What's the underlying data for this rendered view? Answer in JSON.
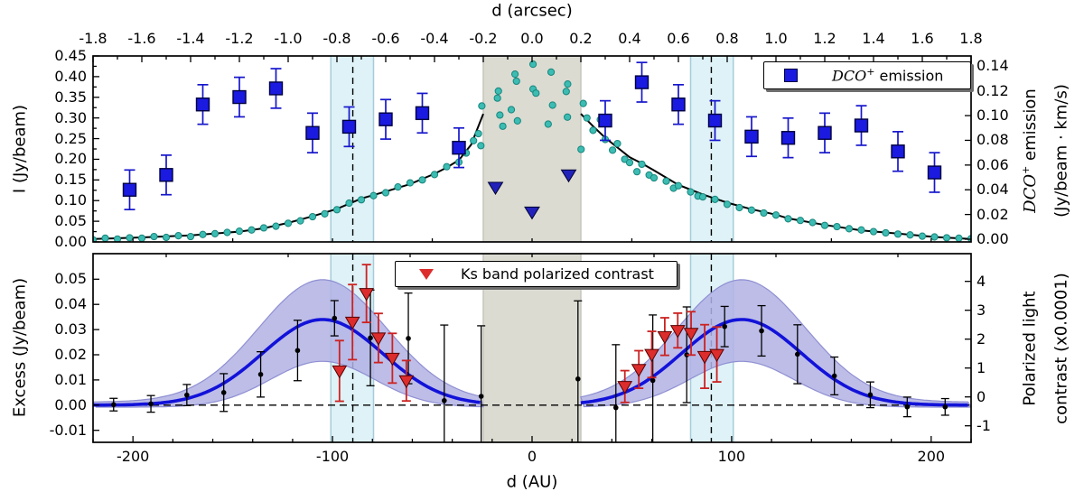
{
  "colors": {
    "square_fill": "#1a1ae0",
    "square_edge": "#000040",
    "blue_err": "#1616cc",
    "triangle_top_fill": "#2222bb",
    "dot_fill": "#3cbcb2",
    "dot_edge": "#17867d",
    "top_curve": "#000000",
    "gray_band": "#dbdbd2",
    "gray_band_edge": "#c6c6bc",
    "cyan_band": "#def2f7",
    "cyan_band_edge": "#a6ccd9",
    "blue_curve": "#1212d9",
    "blue_band": "#b2b2e4",
    "blue_band_edge": "#8f8fd2",
    "red_fill": "#dd2c2c",
    "red_edge": "#550000",
    "red_err": "#cc2222",
    "black": "#000000"
  },
  "annotations": {
    "gray_band_arcsec": [
      -0.2,
      0.2
    ],
    "cyan_bands_arcsec": [
      [
        -0.825,
        -0.65
      ],
      [
        0.65,
        0.825
      ]
    ],
    "dashed_lines_arcsec": [
      -0.735,
      0.735
    ],
    "zero_line_bottom": 0
  },
  "chart_data": [
    {
      "type": "scatter",
      "panel": "top",
      "x_axis": {
        "title": "d (arcsec)",
        "range": [
          -1.8,
          1.8
        ],
        "tick_values": [
          -1.8,
          -1.6,
          -1.4,
          -1.2,
          -1.0,
          -0.8,
          -0.6,
          -0.4,
          -0.2,
          0.0,
          0.2,
          0.4,
          0.6,
          0.8,
          1.0,
          1.2,
          1.4,
          1.6,
          1.8
        ],
        "tick_labels": [
          "-1.8",
          "-1.6",
          "-1.4",
          "-1.2",
          "-1.0",
          "-0.8",
          "-0.6",
          "-0.4",
          "-0.2",
          "0.0",
          "0.2",
          "0.4",
          "0.6",
          "0.8",
          "1.0",
          "1.2",
          "1.4",
          "1.6",
          "1.8"
        ]
      },
      "y_left": {
        "title": "I (Jy/beam)",
        "range": [
          0,
          0.45
        ],
        "tick_values": [
          0.45,
          0.4,
          0.35,
          0.3,
          0.25,
          0.2,
          0.15,
          0.1,
          0.05,
          0.0
        ],
        "tick_labels": [
          "0.45",
          "0.40",
          "0.35",
          "0.30",
          "0.25",
          "0.20",
          "0.15",
          "0.10",
          "0.05",
          "0.00"
        ]
      },
      "y_right": {
        "title_line1_italic": "DCO",
        "title_line1_sup": "+",
        "title_line1_rest": " emission",
        "title_line2": "(Jy/beam · km/s)",
        "range": [
          0,
          0.14
        ],
        "tick_values": [
          0.14,
          0.12,
          0.1,
          0.08,
          0.06,
          0.04,
          0.02,
          0.0
        ],
        "tick_labels": [
          "0.14",
          "0.12",
          "0.10",
          "0.08",
          "0.06",
          "0.04",
          "0.02",
          "0.00"
        ]
      },
      "legend": {
        "marker": "blue-square",
        "label_italic": "DCO",
        "label_sup": "+",
        "label_rest": " emission"
      },
      "series": {
        "dco_squares": {
          "axis": "right",
          "err": 0.016,
          "points": [
            [
              -1.65,
              0.04
            ],
            [
              -1.5,
              0.052
            ],
            [
              -1.35,
              0.109
            ],
            [
              -1.2,
              0.115
            ],
            [
              -1.05,
              0.122
            ],
            [
              -0.9,
              0.086
            ],
            [
              -0.75,
              0.091
            ],
            [
              -0.6,
              0.097
            ],
            [
              -0.45,
              0.102
            ],
            [
              -0.3,
              0.074
            ],
            [
              0.3,
              0.096
            ],
            [
              0.45,
              0.127
            ],
            [
              0.6,
              0.109
            ],
            [
              0.75,
              0.096
            ],
            [
              0.9,
              0.083
            ],
            [
              1.05,
              0.082
            ],
            [
              1.2,
              0.086
            ],
            [
              1.35,
              0.092
            ],
            [
              1.5,
              0.071
            ],
            [
              1.65,
              0.054
            ]
          ]
        },
        "dco_triangles": {
          "axis": "right",
          "points": [
            [
              -0.15,
              0.042
            ],
            [
              0.0,
              0.022
            ],
            [
              0.15,
              0.052
            ]
          ]
        },
        "profile_dots": {
          "axis": "left",
          "points": [
            [
              -1.8,
              0.005
            ],
            [
              -1.75,
              0.009
            ],
            [
              -1.7,
              0.007
            ],
            [
              -1.65,
              0.01
            ],
            [
              -1.6,
              0.009
            ],
            [
              -1.55,
              0.013
            ],
            [
              -1.5,
              0.011
            ],
            [
              -1.45,
              0.015
            ],
            [
              -1.4,
              0.013
            ],
            [
              -1.35,
              0.018
            ],
            [
              -1.3,
              0.02
            ],
            [
              -1.25,
              0.023
            ],
            [
              -1.2,
              0.026
            ],
            [
              -1.15,
              0.029
            ],
            [
              -1.1,
              0.034
            ],
            [
              -1.05,
              0.038
            ],
            [
              -1.0,
              0.045
            ],
            [
              -0.95,
              0.051
            ],
            [
              -0.9,
              0.061
            ],
            [
              -0.85,
              0.068
            ],
            [
              -0.8,
              0.078
            ],
            [
              -0.75,
              0.094
            ],
            [
              -0.7,
              0.102
            ],
            [
              -0.65,
              0.112
            ],
            [
              -0.6,
              0.119
            ],
            [
              -0.55,
              0.133
            ],
            [
              -0.5,
              0.143
            ],
            [
              -0.45,
              0.15
            ],
            [
              -0.4,
              0.163
            ],
            [
              -0.35,
              0.182
            ],
            [
              -0.3,
              0.193
            ],
            [
              -0.27,
              0.215
            ],
            [
              -0.24,
              0.245
            ],
            [
              -0.22,
              0.262
            ],
            [
              -0.21,
              0.233
            ],
            [
              -0.206,
              0.329
            ],
            [
              -0.142,
              0.348
            ],
            [
              -0.138,
              0.365
            ],
            [
              -0.132,
              0.307
            ],
            [
              -0.12,
              0.28
            ],
            [
              -0.085,
              0.32
            ],
            [
              -0.07,
              0.406
            ],
            [
              -0.064,
              0.389
            ],
            [
              -0.06,
              0.293
            ],
            [
              0.004,
              0.43
            ],
            [
              0.004,
              0.37
            ],
            [
              0.016,
              0.36
            ],
            [
              0.066,
              0.285
            ],
            [
              0.078,
              0.411
            ],
            [
              0.084,
              0.331
            ],
            [
              0.14,
              0.364
            ],
            [
              0.145,
              0.302
            ],
            [
              0.146,
              0.382
            ],
            [
              0.201,
              0.224
            ],
            [
              0.21,
              0.335
            ],
            [
              0.225,
              0.3
            ],
            [
              0.25,
              0.27
            ],
            [
              0.28,
              0.296
            ],
            [
              0.3,
              0.248
            ],
            [
              0.33,
              0.222
            ],
            [
              0.35,
              0.238
            ],
            [
              0.38,
              0.2
            ],
            [
              0.4,
              0.192
            ],
            [
              0.43,
              0.17
            ],
            [
              0.45,
              0.188
            ],
            [
              0.48,
              0.162
            ],
            [
              0.5,
              0.155
            ],
            [
              0.55,
              0.147
            ],
            [
              0.58,
              0.13
            ],
            [
              0.6,
              0.136
            ],
            [
              0.65,
              0.121
            ],
            [
              0.68,
              0.111
            ],
            [
              0.7,
              0.109
            ],
            [
              0.75,
              0.103
            ],
            [
              0.8,
              0.091
            ],
            [
              0.85,
              0.083
            ],
            [
              0.9,
              0.077
            ],
            [
              0.95,
              0.07
            ],
            [
              1.0,
              0.065
            ],
            [
              1.05,
              0.056
            ],
            [
              1.1,
              0.052
            ],
            [
              1.15,
              0.047
            ],
            [
              1.2,
              0.04
            ],
            [
              1.25,
              0.037
            ],
            [
              1.3,
              0.032
            ],
            [
              1.35,
              0.029
            ],
            [
              1.4,
              0.025
            ],
            [
              1.45,
              0.022
            ],
            [
              1.5,
              0.019
            ],
            [
              1.55,
              0.017
            ],
            [
              1.6,
              0.014
            ],
            [
              1.65,
              0.012
            ],
            [
              1.7,
              0.01
            ],
            [
              1.75,
              0.009
            ],
            [
              1.8,
              0.008
            ]
          ]
        },
        "fit_curve_left": {
          "axis": "left",
          "points": [
            [
              -1.8,
              0.007
            ],
            [
              -1.6,
              0.011
            ],
            [
              -1.4,
              0.016
            ],
            [
              -1.2,
              0.025
            ],
            [
              -1.1,
              0.033
            ],
            [
              -1.0,
              0.046
            ],
            [
              -0.9,
              0.062
            ],
            [
              -0.8,
              0.08
            ],
            [
              -0.7,
              0.105
            ],
            [
              -0.6,
              0.122
            ],
            [
              -0.5,
              0.14
            ],
            [
              -0.4,
              0.165
            ],
            [
              -0.35,
              0.18
            ],
            [
              -0.3,
              0.198
            ],
            [
              -0.25,
              0.235
            ],
            [
              -0.2,
              0.31
            ]
          ]
        },
        "fit_curve_right": {
          "axis": "left",
          "points": [
            [
              0.2,
              0.31
            ],
            [
              0.25,
              0.28
            ],
            [
              0.3,
              0.252
            ],
            [
              0.4,
              0.205
            ],
            [
              0.45,
              0.19
            ],
            [
              0.5,
              0.173
            ],
            [
              0.6,
              0.138
            ],
            [
              0.7,
              0.115
            ],
            [
              0.75,
              0.105
            ],
            [
              0.8,
              0.095
            ],
            [
              0.9,
              0.079
            ],
            [
              1.0,
              0.066
            ],
            [
              1.05,
              0.057
            ],
            [
              1.2,
              0.041
            ],
            [
              1.35,
              0.028
            ],
            [
              1.5,
              0.02
            ],
            [
              1.65,
              0.012
            ],
            [
              1.8,
              0.007
            ]
          ]
        }
      }
    },
    {
      "type": "scatter",
      "panel": "bottom",
      "x_axis": {
        "title": "d (AU)",
        "range": [
          -220,
          220
        ],
        "minor_step": 20,
        "tick_values": [
          -200,
          -100,
          0,
          100,
          200
        ],
        "tick_labels": [
          "-200",
          "-100",
          "0",
          "100",
          "200"
        ]
      },
      "y_left": {
        "title": "Excess (Jy/beam)",
        "range": [
          -0.015,
          0.06
        ],
        "tick_values": [
          0.05,
          0.04,
          0.03,
          0.02,
          0.01,
          0.0,
          -0.01
        ],
        "tick_labels": [
          "0.05",
          "0.04",
          "0.03",
          "0.02",
          "0.01",
          "0.00",
          "-0.01"
        ]
      },
      "y_right": {
        "title_line1": "Polarized light",
        "title_line2": "contrast (x0.0001)",
        "range": [
          -1.5,
          4.7
        ],
        "tick_values": [
          4,
          3,
          2,
          1,
          0,
          -1
        ],
        "tick_labels": [
          "4",
          "3",
          "2",
          "1",
          "0",
          "-1"
        ]
      },
      "legend": {
        "marker": "red-triangle",
        "label": "Ks band polarized contrast"
      },
      "series": {
        "black_points": {
          "axis": "left",
          "points": [
            [
              -209.7,
              0.0002,
              0.0025
            ],
            [
              -191.0,
              0.0005,
              0.0033
            ],
            [
              -173.0,
              0.004,
              0.0042
            ],
            [
              -154.5,
              0.005,
              0.0075
            ],
            [
              -136.0,
              0.0122,
              0.009
            ],
            [
              -117.5,
              0.0217,
              0.012
            ],
            [
              -99.0,
              0.0345,
              0.007
            ],
            [
              -81.0,
              0.0267,
              0.019
            ],
            [
              -62.0,
              0.0265,
              0.018
            ],
            [
              -44.0,
              0.0018,
              0.03
            ],
            [
              -25.5,
              0.0035,
              0.028
            ],
            [
              23.0,
              0.0104,
              0.031
            ],
            [
              42.0,
              -0.001,
              0.025
            ],
            [
              60.5,
              0.0098,
              0.026
            ],
            [
              77.5,
              0.02,
              0.019
            ],
            [
              96.5,
              0.0312,
              0.008
            ],
            [
              115.0,
              0.0295,
              0.01
            ],
            [
              133.0,
              0.0202,
              0.0117
            ],
            [
              151.5,
              0.0116,
              0.0075
            ],
            [
              169.5,
              0.0041,
              0.0051
            ],
            [
              188.0,
              -0.0007,
              0.0039
            ],
            [
              207.0,
              -0.0007,
              0.0033
            ]
          ]
        },
        "red_triangles": {
          "axis": "right",
          "points": [
            [
              -96.5,
              0.9,
              1.05
            ],
            [
              -90.0,
              2.59,
              1.3
            ],
            [
              -83.0,
              3.58,
              1.0
            ],
            [
              -77.0,
              2.04,
              0.85
            ],
            [
              -70.0,
              1.34,
              0.86
            ],
            [
              -63.0,
              0.56,
              0.7
            ],
            [
              46.5,
              0.36,
              0.55
            ],
            [
              53.5,
              0.95,
              0.65
            ],
            [
              60.0,
              1.47,
              0.8
            ],
            [
              66.5,
              2.09,
              0.65
            ],
            [
              73.0,
              2.3,
              0.6
            ],
            [
              79.7,
              2.2,
              0.75
            ],
            [
              86.5,
              1.4,
              1.1
            ],
            [
              92.6,
              1.47,
              0.95
            ]
          ]
        },
        "model_gaussian": {
          "axis": "left",
          "center_au": 105,
          "sigma_au": 30,
          "peak": 0.034,
          "band_upper": {
            "peak": 0.0486,
            "sigma_au": 32
          },
          "band_lower": {
            "peak": 0.0182,
            "sigma_au": 26
          },
          "mask_au": 24.4
        }
      }
    }
  ]
}
